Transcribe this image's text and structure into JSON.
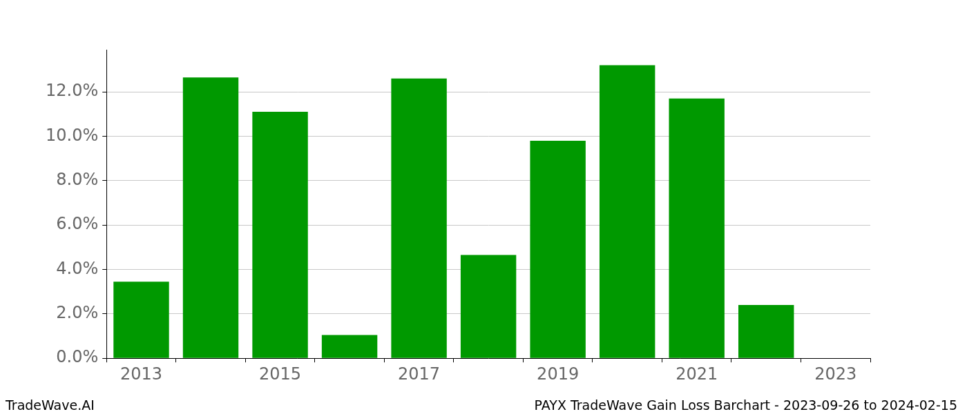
{
  "chart_data": {
    "type": "bar",
    "categories": [
      "2013",
      null,
      "2015",
      null,
      "2017",
      null,
      "2019",
      null,
      "2021",
      null,
      "2023"
    ],
    "values": [
      3.45,
      12.65,
      11.1,
      1.05,
      12.6,
      4.65,
      9.8,
      13.2,
      11.7,
      2.4,
      0
    ],
    "color": "#009900",
    "ylim": [
      0,
      13.9
    ],
    "yticks": [
      {
        "value": 0,
        "label": "0.0%"
      },
      {
        "value": 2,
        "label": "2.0%"
      },
      {
        "value": 4,
        "label": "4.0%"
      },
      {
        "value": 6,
        "label": "6.0%"
      },
      {
        "value": 8,
        "label": "8.0%"
      },
      {
        "value": 10,
        "label": "10.0%"
      },
      {
        "value": 12,
        "label": "12.0%"
      }
    ],
    "grid": true,
    "annotations": [
      "TradeWave.AI",
      "PAYX TradeWave Gain Loss Barchart - 2023-09-26 to 2024-02-15"
    ]
  }
}
